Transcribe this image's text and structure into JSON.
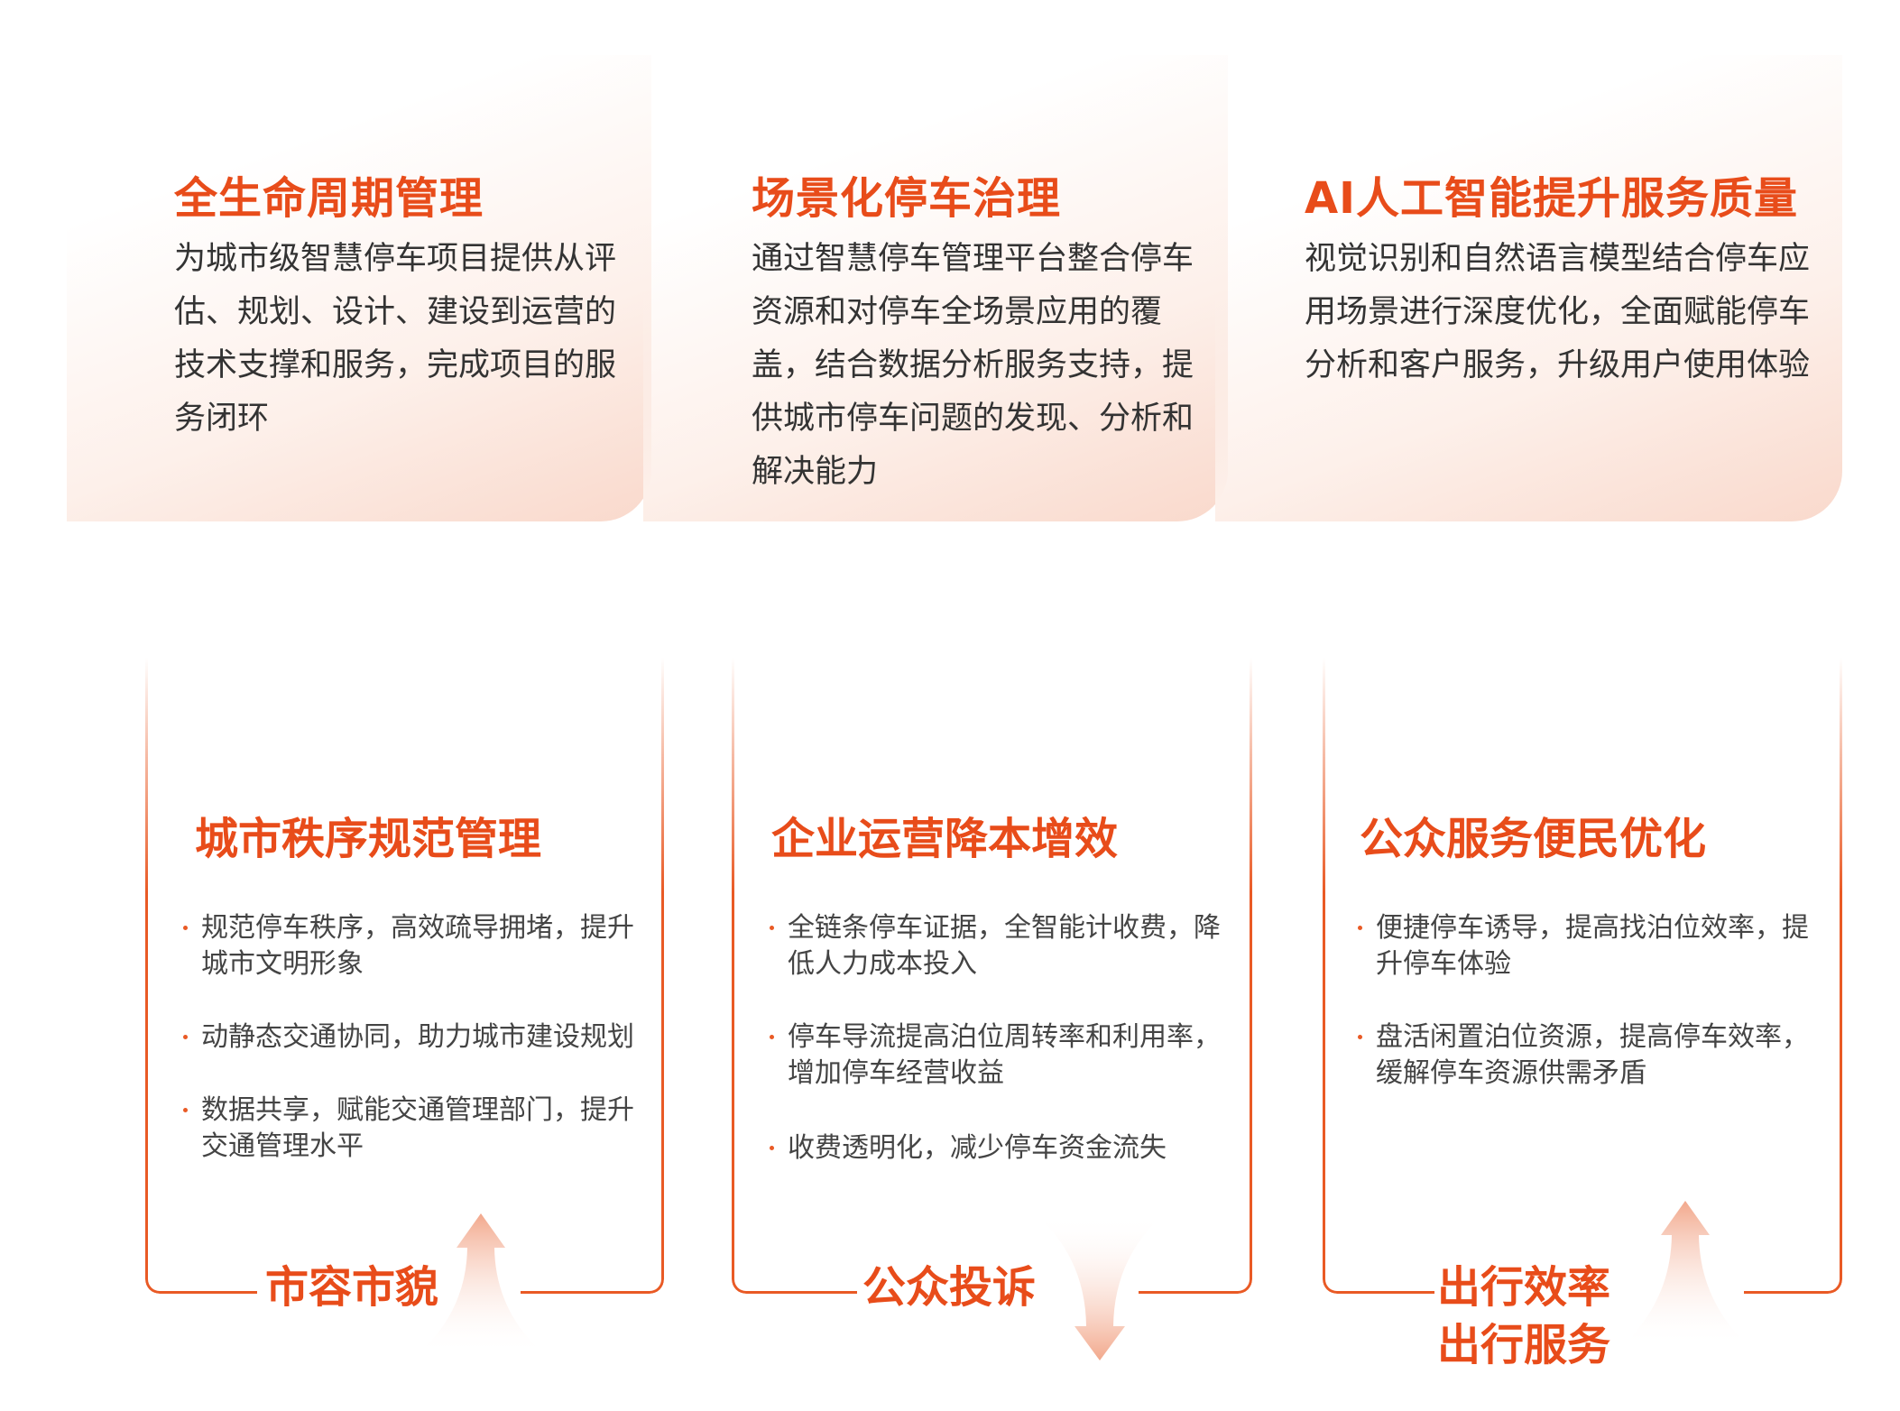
{
  "top_cards": [
    {
      "title": "全生命周期管理",
      "body": "为城市级智慧停车项目提供从评估、规划、设计、建设到运营的技术支撑和服务，完成项目的服务闭环"
    },
    {
      "title": "场景化停车治理",
      "body": "通过智慧停车管理平台整合停车资源和对停车全场景应用的覆盖，结合数据分析服务支持，提供城市停车问题的发现、分析和解决能力"
    },
    {
      "title": "AI人工智能提升服务质量",
      "body": "视觉识别和自然语言模型结合停车应用场景进行深度优化，全面赋能停车分析和客户服务，升级用户使用体验"
    }
  ],
  "bottom_boxes": [
    {
      "title": "城市秩序规范管理",
      "bullets": [
        "规范停车秩序，高效疏导拥堵，提升城市文明形象",
        "动静态交通协同，助力城市建设规划",
        "数据共享，赋能交通管理部门，提升交通管理水平"
      ],
      "label": [
        "市容市貌"
      ],
      "arrow": "up"
    },
    {
      "title": "企业运营降本增效",
      "bullets": [
        "全链条停车证据，全智能计收费，降低人力成本投入",
        "停车导流提高泊位周转率和利用率，增加停车经营收益",
        "收费透明化，减少停车资金流失"
      ],
      "label": [
        "公众投诉"
      ],
      "arrow": "down"
    },
    {
      "title": "公众服务便民优化",
      "bullets": [
        "便捷停车诱导，提高找泊位效率，提升停车体验",
        "盘活闲置泊位资源，提高停车效率，缓解停车资源供需矛盾"
      ],
      "label": [
        "出行效率",
        "出行服务"
      ],
      "arrow": "up"
    }
  ],
  "colors": {
    "accent": "#e84c1a",
    "border": "#e95a25",
    "text": "#333333"
  }
}
